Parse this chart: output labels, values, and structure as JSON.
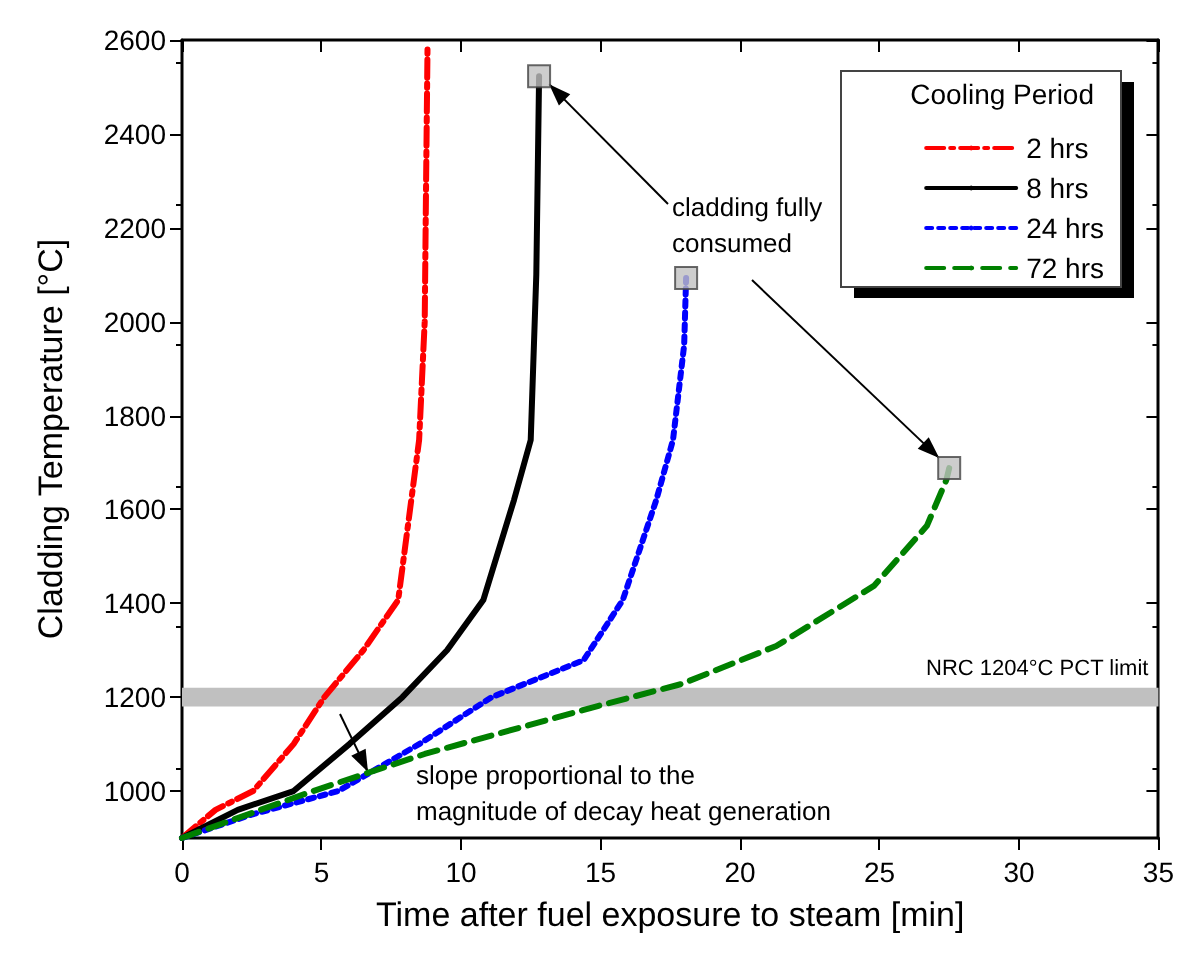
{
  "chart_data": {
    "type": "line",
    "xlabel": "Time after fuel exposure to steam [min]",
    "ylabel": "Cladding Temperature [°C]",
    "legend_title": "Cooling Period",
    "legend": "top right",
    "grid": false,
    "marker": "none",
    "xlim": [
      0,
      35
    ],
    "xticks": [
      0,
      5,
      10,
      15,
      20,
      25,
      30,
      35
    ],
    "ylim": [
      900,
      2600
    ],
    "yticks": [
      1000,
      1200,
      1400,
      1600,
      1800,
      2000,
      2200,
      2400,
      2600
    ],
    "series": [
      {
        "name": "2 hrs",
        "color": "#ff0000",
        "line_style": "dashdot",
        "x": [
          0,
          1.2,
          2.55,
          4,
          5.1,
          6.5,
          7.75,
          8.5,
          8.7,
          8.75,
          8.8
        ],
        "values": [
          900,
          960,
          1000,
          1100,
          1200,
          1300,
          1407,
          1748,
          2000,
          2300,
          2580
        ]
      },
      {
        "name": "8 hrs",
        "color": "#000000",
        "line_style": "solid",
        "x": [
          0,
          2,
          4,
          6,
          7.9,
          9.5,
          10.8,
          11.9,
          12.5,
          12.7,
          12.8
        ],
        "values": [
          900,
          960,
          1000,
          1100,
          1200,
          1300,
          1407,
          1620,
          1748,
          2100,
          2523
        ]
      },
      {
        "name": "24 hrs",
        "color": "#0000ff",
        "line_style": "dotted",
        "x": [
          0,
          2.5,
          5.6,
          8.5,
          11.1,
          14.4,
          15.8,
          17,
          17.6,
          18,
          18.07
        ],
        "values": [
          900,
          950,
          1000,
          1100,
          1200,
          1279,
          1407,
          1620,
          1748,
          1950,
          2093
        ]
      },
      {
        "name": "72 hrs",
        "color": "#008000",
        "line_style": "dashed",
        "x": [
          0,
          4.7,
          8.7,
          14.9,
          17.9,
          21.3,
          24.8,
          26.7,
          27.4,
          27.5
        ],
        "values": [
          900,
          1000,
          1079,
          1181,
          1228,
          1309,
          1437,
          1565,
          1663,
          1688
        ]
      },
      {
        "type": "scatter",
        "marker": "square",
        "color": "#c0c0c0",
        "x": [
          12.8,
          18.07,
          27.5
        ],
        "values": [
          2523,
          2093,
          1688
        ]
      }
    ],
    "bands": [
      {
        "axis": "y",
        "from": 1180,
        "to": 1220,
        "label": "NRC 1204°C PCT limit",
        "color": "#c0c0c0"
      }
    ],
    "annotations": [
      {
        "text": "cladding fully\nconsumed",
        "x": 12.8,
        "y": 2523
      },
      "slope proportional to the\nmagnitude of decay heat generation"
    ]
  }
}
